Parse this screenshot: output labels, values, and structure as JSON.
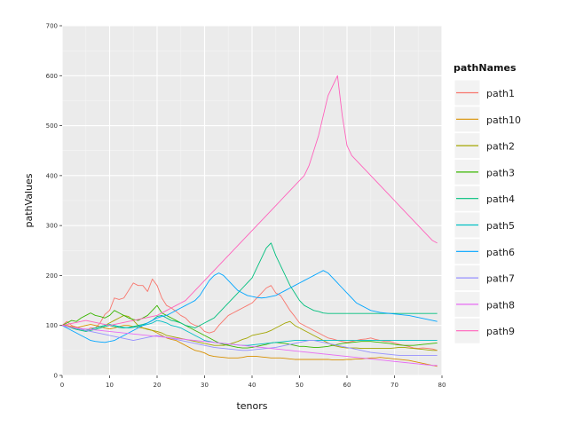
{
  "chart_data": {
    "type": "line",
    "xlabel": "tenors",
    "ylabel": "pathValues",
    "xlim": [
      0,
      80
    ],
    "ylim": [
      0,
      700
    ],
    "x_ticks": [
      0,
      10,
      20,
      30,
      40,
      50,
      60,
      70,
      80
    ],
    "y_ticks": [
      0,
      100,
      200,
      300,
      400,
      500,
      600,
      700
    ],
    "grid": true,
    "legend": {
      "title": "pathNames",
      "position": "right"
    },
    "series": [
      {
        "name": "path1",
        "color": "#f8766d",
        "values": [
          100,
          108,
          100,
          97,
          93,
          90,
          95,
          95,
          105,
          122,
          130,
          155,
          152,
          155,
          170,
          185,
          180,
          180,
          168,
          193,
          180,
          155,
          140,
          135,
          128,
          120,
          115,
          105,
          100,
          98,
          88,
          85,
          88,
          100,
          110,
          120,
          125,
          130,
          135,
          140,
          145,
          155,
          165,
          175,
          180,
          165,
          160,
          145,
          130,
          118,
          105,
          100,
          95,
          90,
          85,
          80,
          75,
          73,
          70,
          68,
          66,
          68,
          70,
          72,
          73,
          75,
          72,
          70,
          68,
          68,
          65,
          62,
          60,
          58,
          55,
          54,
          55,
          54,
          53,
          50
        ]
      },
      {
        "name": "path10",
        "color": "#d89000",
        "values": [
          100,
          100,
          98,
          95,
          98,
          100,
          102,
          100,
          98,
          95,
          93,
          95,
          98,
          100,
          100,
          98,
          96,
          95,
          93,
          90,
          85,
          80,
          75,
          72,
          70,
          65,
          60,
          55,
          50,
          48,
          45,
          40,
          38,
          37,
          36,
          35,
          35,
          35,
          36,
          38,
          38,
          38,
          37,
          36,
          35,
          35,
          35,
          34,
          33,
          32,
          32,
          32,
          32,
          32,
          32,
          32,
          32,
          31,
          31,
          31,
          32,
          32,
          33,
          33,
          34,
          35,
          35,
          36,
          35,
          34,
          33,
          32,
          31,
          30,
          28,
          26,
          24,
          22,
          20,
          18
        ]
      },
      {
        "name": "path2",
        "color": "#a3a500",
        "values": [
          100,
          98,
          96,
          94,
          92,
          90,
          92,
          95,
          98,
          100,
          105,
          110,
          115,
          120,
          118,
          110,
          100,
          95,
          92,
          90,
          88,
          85,
          80,
          78,
          76,
          74,
          72,
          70,
          68,
          66,
          64,
          62,
          60,
          60,
          60,
          62,
          65,
          68,
          72,
          75,
          80,
          82,
          84,
          86,
          90,
          95,
          100,
          105,
          108,
          100,
          95,
          90,
          85,
          80,
          75,
          70,
          65,
          60,
          58,
          56,
          55,
          55,
          55,
          54,
          54,
          54,
          54,
          54,
          54,
          54,
          55,
          56,
          56,
          55,
          54,
          53,
          52,
          51,
          50,
          50
        ]
      },
      {
        "name": "path3",
        "color": "#39b600",
        "values": [
          100,
          105,
          110,
          108,
          115,
          120,
          125,
          120,
          118,
          115,
          120,
          130,
          125,
          120,
          115,
          112,
          110,
          115,
          120,
          130,
          140,
          125,
          120,
          115,
          110,
          105,
          100,
          95,
          90,
          85,
          80,
          75,
          70,
          65,
          62,
          60,
          58,
          56,
          55,
          55,
          56,
          58,
          60,
          62,
          65,
          66,
          65,
          64,
          62,
          60,
          58,
          58,
          57,
          56,
          56,
          57,
          58,
          60,
          62,
          64,
          65,
          66,
          67,
          68,
          68,
          68,
          67,
          66,
          65,
          64,
          62,
          61,
          60,
          60,
          60,
          61,
          62,
          63,
          64,
          65
        ]
      },
      {
        "name": "path4",
        "color": "#00bf7d",
        "values": [
          100,
          98,
          95,
          92,
          90,
          88,
          90,
          92,
          95,
          98,
          100,
          98,
          96,
          95,
          96,
          98,
          100,
          102,
          105,
          110,
          118,
          120,
          115,
          110,
          108,
          105,
          100,
          98,
          95,
          100,
          105,
          110,
          115,
          125,
          135,
          145,
          155,
          165,
          175,
          185,
          195,
          215,
          235,
          255,
          265,
          240,
          220,
          200,
          180,
          165,
          150,
          140,
          135,
          130,
          128,
          125,
          124,
          124,
          124,
          124,
          124,
          124,
          124,
          124,
          124,
          124,
          124,
          124,
          124,
          124,
          124,
          124,
          124,
          124,
          124,
          124,
          124,
          124,
          124,
          124
        ]
      },
      {
        "name": "path5",
        "color": "#00bfc4",
        "values": [
          100,
          98,
          96,
          94,
          92,
          90,
          92,
          95,
          98,
          100,
          102,
          100,
          98,
          96,
          95,
          96,
          98,
          100,
          102,
          105,
          110,
          108,
          105,
          100,
          98,
          95,
          90,
          85,
          80,
          75,
          70,
          68,
          66,
          65,
          64,
          63,
          62,
          61,
          60,
          60,
          61,
          62,
          63,
          64,
          65,
          66,
          67,
          68,
          69,
          70,
          70,
          70,
          70,
          70,
          70,
          70,
          70,
          70,
          70,
          70,
          70,
          70,
          70,
          70,
          70,
          70,
          70,
          70,
          70,
          70,
          70,
          70,
          70,
          70,
          70,
          70,
          70,
          70,
          70,
          70
        ]
      },
      {
        "name": "path6",
        "color": "#00a5ff",
        "values": [
          100,
          95,
          90,
          85,
          80,
          75,
          70,
          68,
          67,
          66,
          68,
          70,
          75,
          80,
          85,
          90,
          95,
          100,
          105,
          110,
          115,
          118,
          120,
          125,
          130,
          135,
          140,
          145,
          150,
          160,
          175,
          190,
          200,
          205,
          200,
          190,
          180,
          170,
          165,
          160,
          158,
          156,
          155,
          156,
          158,
          160,
          165,
          170,
          175,
          180,
          185,
          190,
          195,
          200,
          205,
          210,
          205,
          195,
          185,
          175,
          165,
          155,
          145,
          140,
          135,
          130,
          128,
          126,
          125,
          124,
          123,
          122,
          121,
          120,
          118,
          116,
          114,
          112,
          110,
          108
        ]
      },
      {
        "name": "path7",
        "color": "#9590ff",
        "values": [
          100,
          98,
          96,
          94,
          92,
          90,
          88,
          86,
          84,
          82,
          80,
          78,
          76,
          74,
          72,
          70,
          72,
          74,
          76,
          78,
          80,
          78,
          76,
          74,
          72,
          70,
          68,
          66,
          64,
          62,
          60,
          58,
          56,
          55,
          54,
          53,
          52,
          51,
          50,
          50,
          51,
          52,
          53,
          54,
          55,
          56,
          58,
          60,
          62,
          64,
          66,
          68,
          70,
          70,
          68,
          66,
          64,
          62,
          60,
          58,
          56,
          54,
          52,
          50,
          48,
          46,
          45,
          44,
          43,
          42,
          41,
          40,
          40,
          40,
          40,
          40,
          40,
          40,
          40,
          40
        ]
      },
      {
        "name": "path8",
        "color": "#e76bf3",
        "values": [
          100,
          98,
          96,
          95,
          94,
          93,
          92,
          91,
          90,
          89,
          88,
          87,
          86,
          85,
          84,
          83,
          82,
          81,
          80,
          79,
          78,
          77,
          76,
          75,
          74,
          73,
          72,
          71,
          70,
          69,
          68,
          67,
          66,
          65,
          64,
          63,
          62,
          61,
          60,
          59,
          58,
          57,
          56,
          55,
          54,
          53,
          52,
          51,
          50,
          49,
          48,
          47,
          46,
          45,
          44,
          43,
          42,
          41,
          40,
          39,
          38,
          37,
          36,
          35,
          34,
          33,
          32,
          31,
          30,
          29,
          28,
          27,
          26,
          25,
          24,
          23,
          22,
          21,
          20,
          20
        ]
      },
      {
        "name": "path9",
        "color": "#ff62bc",
        "values": [
          100,
          102,
          104,
          106,
          108,
          110,
          108,
          106,
          104,
          102,
          100,
          102,
          104,
          106,
          108,
          110,
          112,
          114,
          116,
          118,
          120,
          125,
          130,
          135,
          140,
          145,
          150,
          160,
          170,
          180,
          190,
          200,
          210,
          220,
          230,
          240,
          250,
          260,
          270,
          280,
          290,
          300,
          310,
          320,
          330,
          340,
          350,
          360,
          370,
          380,
          390,
          400,
          420,
          450,
          480,
          520,
          560,
          580,
          600,
          520,
          460,
          440,
          430,
          420,
          410,
          400,
          390,
          380,
          370,
          360,
          350,
          340,
          330,
          320,
          310,
          300,
          290,
          280,
          270,
          265
        ]
      }
    ]
  }
}
